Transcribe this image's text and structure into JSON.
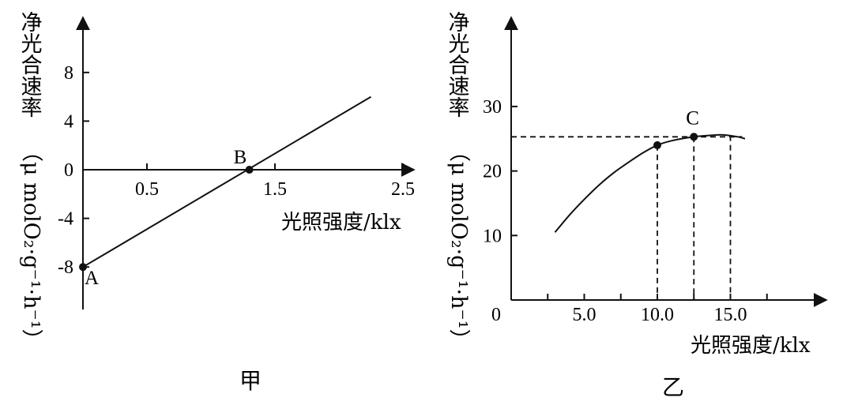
{
  "chart_data": [
    {
      "type": "line",
      "caption": "甲",
      "ylabel": "净光合速率（μ molO₂·g⁻¹·h⁻¹）",
      "ylabel_text": "净光合速率",
      "ylabel_unit": "（μ molO₂·g⁻¹·h⁻¹）",
      "xlabel": "光照强度/klx",
      "xticks": [
        0.5,
        1.5,
        2.5
      ],
      "xtick_labels": [
        "0.5",
        "1.5",
        "2.5"
      ],
      "yticks": [
        8,
        4,
        0,
        -4,
        -8
      ],
      "ytick_labels": [
        "8",
        "4",
        "0",
        "-4",
        "-8"
      ],
      "xlim": [
        0,
        2.6
      ],
      "ylim": [
        -12,
        12
      ],
      "series": [
        {
          "x": [
            0,
            2.25
          ],
          "y": [
            -8,
            6
          ]
        }
      ],
      "points": [
        {
          "label": "A",
          "x": 0,
          "y": -8
        },
        {
          "label": "B",
          "x": 1.3,
          "y": 0
        }
      ]
    },
    {
      "type": "line",
      "caption": "乙",
      "ylabel": "净光合速率（μ molO₂·g⁻¹·h⁻¹）",
      "ylabel_text": "净光合速率",
      "ylabel_unit": "（μ molO₂·g⁻¹·h⁻¹）",
      "xlabel": "光照强度/klx",
      "origin_label": "0",
      "xticks": [
        5,
        10,
        15
      ],
      "xtick_labels": [
        "5.0",
        "10.0",
        "15.0"
      ],
      "yticks": [
        10,
        20,
        30
      ],
      "ytick_labels": [
        "10",
        "20",
        "30"
      ],
      "xlim": [
        0,
        20
      ],
      "ylim": [
        0,
        40
      ],
      "series": [
        {
          "x": [
            3,
            4,
            5,
            6,
            7,
            8,
            9,
            10,
            11,
            12.5,
            13.5,
            14.5,
            15.5,
            16
          ],
          "y": [
            10.5,
            13.2,
            15.6,
            17.8,
            19.7,
            21.3,
            22.8,
            24.0,
            24.7,
            25.3,
            25.5,
            25.6,
            25.3,
            25.0
          ]
        }
      ],
      "points": [
        {
          "label": "",
          "x": 10,
          "y": 24
        },
        {
          "label": "C",
          "x": 12.5,
          "y": 25.3
        }
      ],
      "reference_lines": {
        "horizontal_y": 25.3,
        "vertical_x": [
          10,
          12.5,
          15
        ]
      }
    }
  ]
}
